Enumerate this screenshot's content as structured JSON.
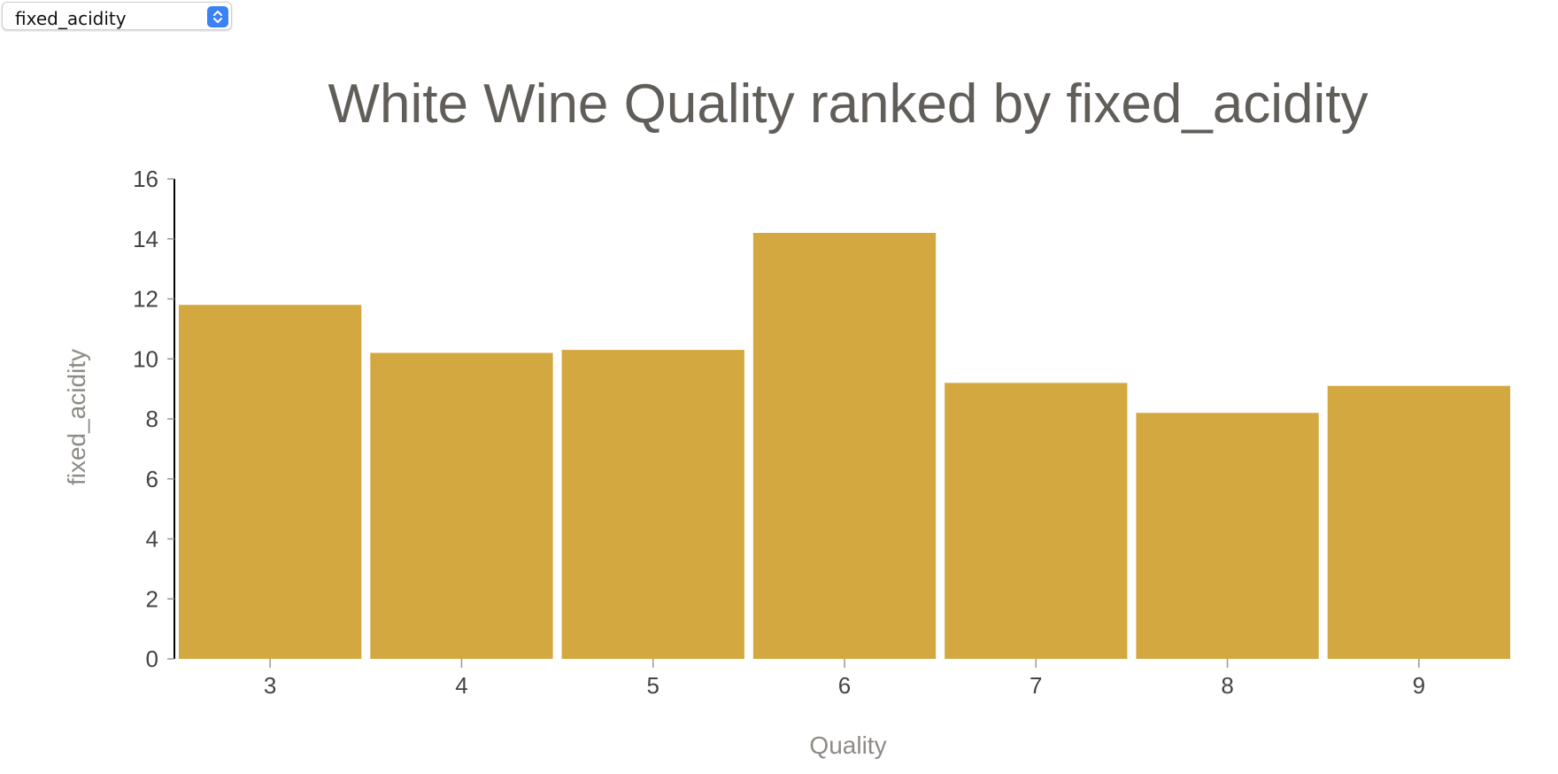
{
  "dropdown": {
    "selected": "fixed_acidity",
    "accent_color": "#3b82f6"
  },
  "chart_data": {
    "type": "bar",
    "title": "White Wine Quality ranked by fixed_acidity",
    "xlabel": "Quality",
    "ylabel": "fixed_acidity",
    "categories": [
      "3",
      "4",
      "5",
      "6",
      "7",
      "8",
      "9"
    ],
    "values": [
      11.8,
      10.2,
      10.3,
      14.2,
      9.2,
      8.2,
      9.1
    ],
    "ylim": [
      0,
      16
    ],
    "yticks": [
      0,
      2,
      4,
      6,
      8,
      10,
      12,
      14,
      16
    ],
    "bar_color": "#d4a840",
    "grid": false,
    "legend": "none"
  }
}
